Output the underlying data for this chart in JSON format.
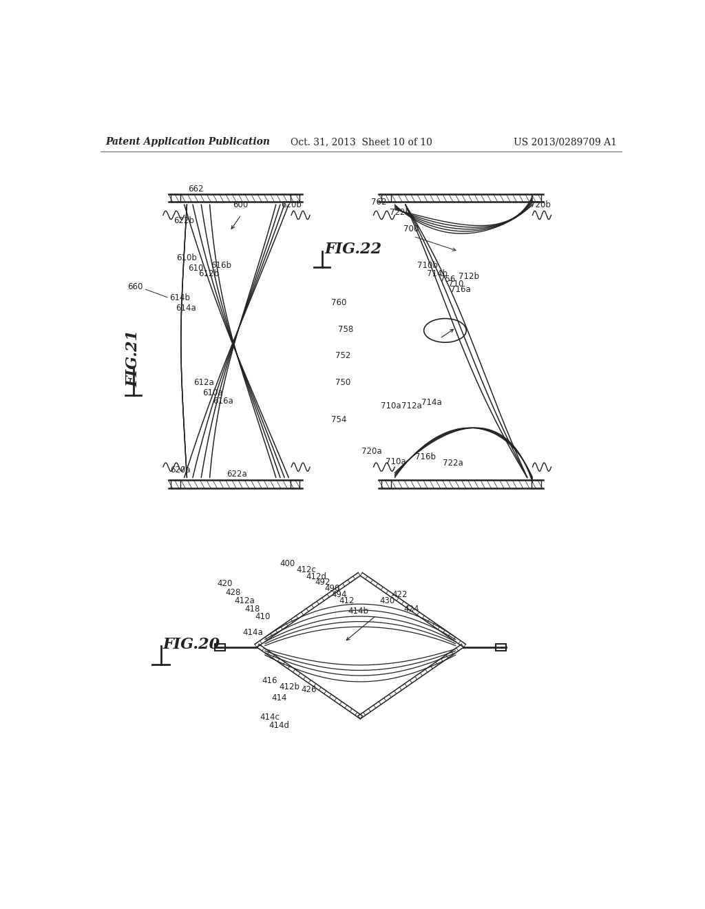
{
  "background_color": "#ffffff",
  "header": {
    "left": "Patent Application Publication",
    "center": "Oct. 31, 2013  Sheet 10 of 10",
    "right": "US 2013/0289709 A1",
    "fontsize": 10
  }
}
